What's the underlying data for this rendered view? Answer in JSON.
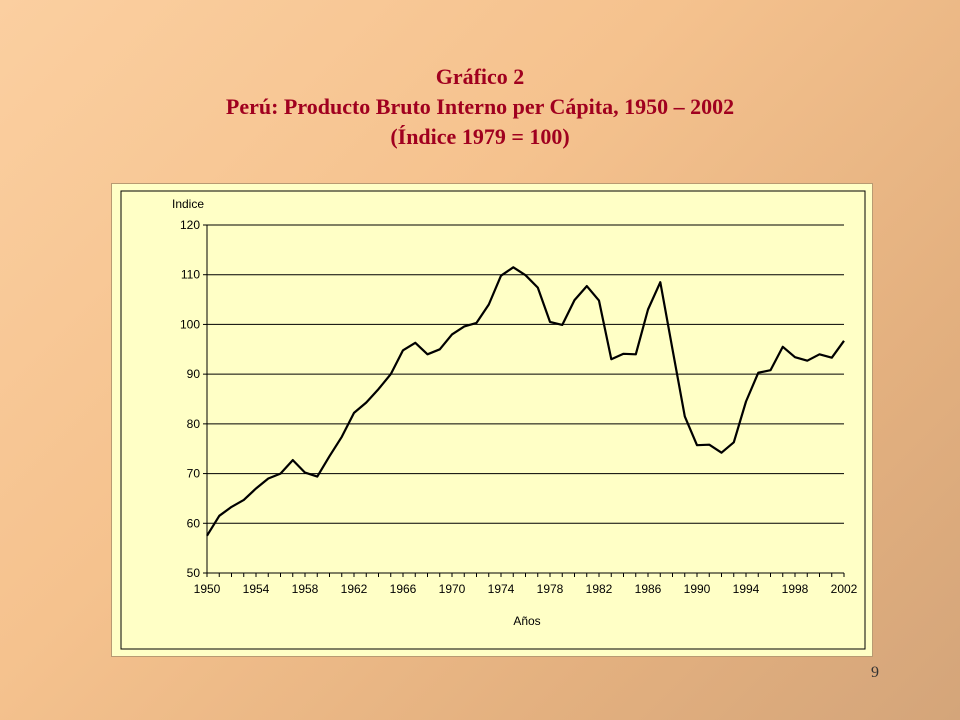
{
  "slide": {
    "title_line1": "Gráfico 2",
    "title_line2": "Perú: Producto Bruto Interno per Cápita, 1950 – 2002",
    "title_line3": "(Índice 1979 = 100)",
    "page_number": "9"
  },
  "colors": {
    "title": "#a0001f",
    "plot_background": "#ffffc6",
    "line": "#000000"
  },
  "chart_data": {
    "type": "line",
    "ylabel": "Indice",
    "xlabel": "Años",
    "ylim": [
      50,
      120
    ],
    "yticks": [
      50,
      60,
      70,
      80,
      90,
      100,
      110,
      120
    ],
    "xlim": [
      1950,
      2002
    ],
    "xticks": [
      1950,
      1954,
      1958,
      1962,
      1966,
      1970,
      1974,
      1978,
      1982,
      1986,
      1990,
      1994,
      1998,
      2002
    ],
    "grid": "horizontal",
    "x": [
      1950,
      1951,
      1952,
      1953,
      1954,
      1955,
      1956,
      1957,
      1958,
      1959,
      1960,
      1961,
      1962,
      1963,
      1964,
      1965,
      1966,
      1967,
      1968,
      1969,
      1970,
      1971,
      1972,
      1973,
      1974,
      1975,
      1976,
      1977,
      1978,
      1979,
      1980,
      1981,
      1982,
      1983,
      1984,
      1985,
      1986,
      1987,
      1988,
      1989,
      1990,
      1991,
      1992,
      1993,
      1994,
      1995,
      1996,
      1997,
      1998,
      1999,
      2000,
      2001,
      2002
    ],
    "values": [
      57.5,
      61.5,
      63.3,
      64.7,
      67.0,
      69.0,
      70.0,
      72.7,
      70.2,
      69.4,
      73.5,
      77.4,
      82.2,
      84.3,
      87.0,
      90.0,
      94.8,
      96.3,
      94.0,
      95.0,
      98.0,
      99.6,
      100.3,
      104.0,
      109.8,
      111.5,
      109.9,
      107.4,
      100.5,
      99.9,
      104.9,
      107.7,
      104.8,
      93.0,
      94.1,
      94.0,
      103.0,
      108.5,
      95.0,
      81.5,
      75.7,
      75.8,
      74.2,
      76.3,
      84.5,
      90.3,
      90.8,
      95.5,
      93.4,
      92.7,
      94.0,
      93.3,
      96.7
    ]
  }
}
